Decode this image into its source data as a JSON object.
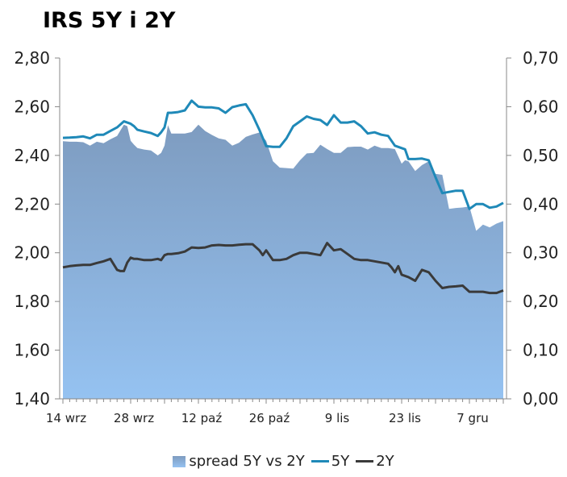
{
  "chart_data": {
    "type": "area+line",
    "title": "IRS 5Y i 2Y",
    "left_axis": {
      "ticks": [
        "2,80",
        "2,60",
        "2,40",
        "2,20",
        "2,00",
        "1,80",
        "1,60",
        "1,40"
      ],
      "ylim": [
        1.4,
        2.8
      ]
    },
    "right_axis": {
      "ticks": [
        "0,70",
        "0,60",
        "0,50",
        "0,40",
        "0,30",
        "0,20",
        "0,10",
        "0,00"
      ],
      "ylim": [
        0.0,
        0.7
      ]
    },
    "x_tick_labels": [
      "14 wrz",
      "28 wrz",
      "12 paź",
      "26 paź",
      "9 lis",
      "23 lis",
      "7 gru"
    ],
    "x_tick_positions": [
      0,
      10,
      20,
      30,
      40,
      50,
      60
    ],
    "x_max": 65,
    "grid": false,
    "legend_position": "bottom",
    "series": [
      {
        "name": "spread 5Y vs 2Y",
        "kind": "area",
        "axis": "right",
        "color_top": "#7e9cc0",
        "color_bottom": "#95c2f1",
        "x": [
          0,
          1,
          2,
          3,
          4,
          5,
          6,
          7,
          8,
          9,
          9.5,
          10,
          10.5,
          11,
          12,
          13,
          14,
          14.5,
          15,
          15.5,
          16,
          17,
          18,
          19,
          20,
          21,
          22,
          23,
          24,
          25,
          26,
          27,
          28,
          29,
          30,
          31,
          32,
          33,
          34,
          35,
          36,
          37,
          38,
          39,
          40,
          41,
          42,
          43,
          44,
          45,
          46,
          47,
          48,
          49,
          50,
          50.5,
          51,
          52,
          53,
          54,
          55,
          56,
          57,
          58,
          59,
          60,
          61,
          62,
          63,
          64,
          65
        ],
        "values": [
          0.529,
          0.528,
          0.528,
          0.527,
          0.52,
          0.528,
          0.525,
          0.533,
          0.54,
          0.563,
          0.56,
          0.53,
          0.522,
          0.515,
          0.512,
          0.51,
          0.5,
          0.505,
          0.52,
          0.562,
          0.545,
          0.545,
          0.545,
          0.548,
          0.563,
          0.55,
          0.542,
          0.535,
          0.532,
          0.52,
          0.526,
          0.538,
          0.543,
          0.547,
          0.53,
          0.488,
          0.475,
          0.474,
          0.473,
          0.49,
          0.504,
          0.505,
          0.522,
          0.513,
          0.505,
          0.505,
          0.517,
          0.518,
          0.518,
          0.512,
          0.52,
          0.515,
          0.515,
          0.513,
          0.483,
          0.49,
          0.488,
          0.468,
          0.48,
          0.488,
          0.462,
          0.46,
          0.39,
          0.392,
          0.393,
          0.395,
          0.345,
          0.358,
          0.352,
          0.36,
          0.365
        ]
      },
      {
        "name": "5Y",
        "kind": "line",
        "axis": "left",
        "color": "#1f89b8",
        "x": [
          0,
          1,
          2,
          3,
          4,
          5,
          6,
          7,
          8,
          9,
          9.5,
          10,
          10.5,
          11,
          12,
          13,
          14,
          14.5,
          15,
          15.5,
          16,
          17,
          18,
          19,
          20,
          21,
          22,
          23,
          24,
          25,
          26,
          27,
          28,
          29,
          30,
          31,
          32,
          33,
          34,
          35,
          36,
          37,
          38,
          39,
          40,
          41,
          42,
          43,
          44,
          45,
          46,
          47,
          48,
          49,
          50,
          50.5,
          51,
          52,
          53,
          54,
          55,
          56,
          57,
          58,
          59,
          60,
          61,
          62,
          63,
          64,
          65
        ],
        "values": [
          2.472,
          2.473,
          2.475,
          2.478,
          2.47,
          2.485,
          2.485,
          2.5,
          2.515,
          2.54,
          2.535,
          2.53,
          2.52,
          2.505,
          2.498,
          2.492,
          2.48,
          2.495,
          2.515,
          2.575,
          2.575,
          2.578,
          2.585,
          2.625,
          2.6,
          2.597,
          2.597,
          2.593,
          2.575,
          2.598,
          2.605,
          2.61,
          2.565,
          2.505,
          2.438,
          2.435,
          2.435,
          2.47,
          2.52,
          2.54,
          2.56,
          2.55,
          2.545,
          2.525,
          2.565,
          2.535,
          2.535,
          2.54,
          2.52,
          2.49,
          2.495,
          2.485,
          2.48,
          2.44,
          2.43,
          2.425,
          2.385,
          2.385,
          2.387,
          2.38,
          2.31,
          2.245,
          2.25,
          2.255,
          2.255,
          2.18,
          2.2,
          2.2,
          2.185,
          2.19,
          2.205
        ]
      },
      {
        "name": "2Y",
        "kind": "line",
        "axis": "left",
        "color": "#3a3a3a",
        "x": [
          0,
          1,
          2,
          3,
          4,
          5,
          6,
          7,
          8,
          8.5,
          9,
          9.5,
          10,
          10.5,
          11,
          12,
          13,
          14,
          14.5,
          15,
          15.5,
          16,
          17,
          18,
          19,
          20,
          21,
          22,
          23,
          24,
          25,
          26,
          27,
          28,
          29,
          29.5,
          30,
          31,
          32,
          33,
          34,
          35,
          36,
          37,
          38,
          39,
          40,
          41,
          42,
          43,
          44,
          45,
          46,
          47,
          48,
          48.5,
          49,
          49.5,
          50,
          51,
          52,
          53,
          54,
          55,
          56,
          57,
          58,
          59,
          60,
          61,
          62,
          63,
          64,
          65
        ],
        "values": [
          1.94,
          1.945,
          1.948,
          1.95,
          1.95,
          1.958,
          1.965,
          1.975,
          1.93,
          1.925,
          1.925,
          1.96,
          1.98,
          1.975,
          1.975,
          1.97,
          1.97,
          1.975,
          1.97,
          1.99,
          1.995,
          1.995,
          1.998,
          2.005,
          2.022,
          2.02,
          2.022,
          2.03,
          2.032,
          2.03,
          2.03,
          2.033,
          2.035,
          2.035,
          2.01,
          1.99,
          2.01,
          1.97,
          1.97,
          1.975,
          1.99,
          2.0,
          2.0,
          1.995,
          1.99,
          2.04,
          2.01,
          2.015,
          1.995,
          1.975,
          1.97,
          1.97,
          1.965,
          1.96,
          1.955,
          1.94,
          1.92,
          1.945,
          1.91,
          1.9,
          1.885,
          1.93,
          1.92,
          1.885,
          1.855,
          1.86,
          1.862,
          1.865,
          1.84,
          1.84,
          1.84,
          1.835,
          1.835,
          1.845
        ]
      }
    ]
  }
}
